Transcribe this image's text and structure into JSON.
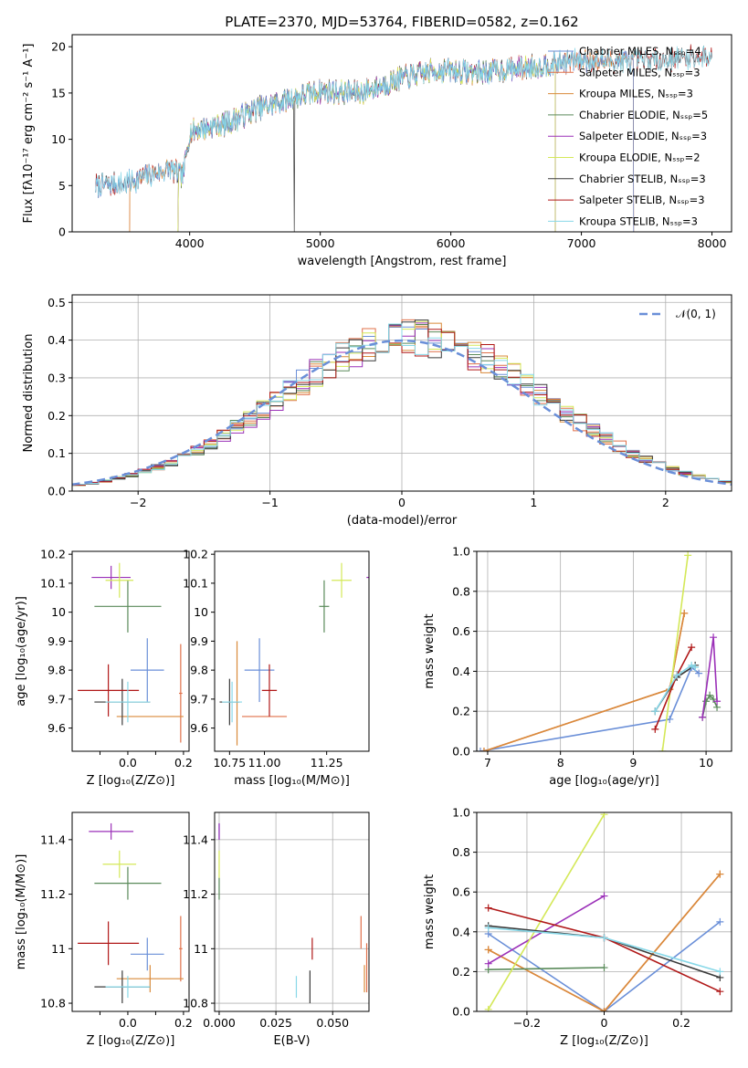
{
  "title": "PLATE=2370, MJD=53764, FIBERID=0582, z=0.162",
  "colors": {
    "Chabrier MILES": "#6a8fd8",
    "Salpeter MILES": "#e0704a",
    "Kroupa MILES": "#d98a3a",
    "Chabrier ELODIE": "#5a8a5a",
    "Salpeter ELODIE": "#9b30b8",
    "Kroupa ELODIE": "#d4e858",
    "Chabrier STELIB": "#3a3a3a",
    "Salpeter STELIB": "#b01818",
    "Kroupa STELIB": "#88d8e8",
    "gaussian": "#6a8fd8"
  },
  "chart_data": [
    {
      "id": "spectrum",
      "type": "line",
      "xlabel": "wavelength [Angstrom, rest frame]",
      "ylabel": "Flux [fλ10⁻¹⁷ erg cm⁻² s⁻¹ A⁻¹]",
      "xlim": [
        3100,
        8150
      ],
      "ylim": [
        0,
        21.3
      ],
      "xticks": [
        4000,
        5000,
        6000,
        7000,
        8000
      ],
      "yticks": [
        0,
        5,
        10,
        15,
        20
      ],
      "grid": false,
      "legend_position": "top-right",
      "continuum": [
        [
          3280,
          5.0
        ],
        [
          3500,
          5.2
        ],
        [
          3700,
          6.2
        ],
        [
          3850,
          6.8
        ],
        [
          3950,
          6.0
        ],
        [
          4000,
          10.8
        ],
        [
          4300,
          11.8
        ],
        [
          4500,
          13.2
        ],
        [
          4800,
          14.5
        ],
        [
          5000,
          15.2
        ],
        [
          5300,
          15.0
        ],
        [
          5600,
          16.5
        ],
        [
          5900,
          17.5
        ],
        [
          6200,
          17.2
        ],
        [
          6600,
          17.8
        ],
        [
          7000,
          18.6
        ],
        [
          7400,
          18.4
        ],
        [
          7800,
          18.8
        ],
        [
          8000,
          19.0
        ]
      ],
      "series": [
        {
          "label": "Chabrier MILES, Nₛₛₚ=4",
          "color_key": "Chabrier MILES",
          "x_range": [
            3280,
            7400
          ]
        },
        {
          "label": "Salpeter MILES, Nₛₛₚ=3",
          "color_key": "Salpeter MILES",
          "x_range": [
            3540,
            7400
          ]
        },
        {
          "label": "Kroupa MILES, Nₛₛₚ=3",
          "color_key": "Kroupa MILES",
          "x_range": [
            3540,
            7400
          ]
        },
        {
          "label": "Chabrier ELODIE, Nₛₛₚ=5",
          "color_key": "Chabrier ELODIE",
          "x_range": [
            3910,
            6800
          ]
        },
        {
          "label": "Salpeter ELODIE, Nₛₛₚ=3",
          "color_key": "Salpeter ELODIE",
          "x_range": [
            3910,
            6800
          ]
        },
        {
          "label": "Kroupa ELODIE, Nₛₛₚ=2",
          "color_key": "Kroupa ELODIE",
          "x_range": [
            3910,
            6800
          ]
        },
        {
          "label": "Chabrier STELIB, Nₛₛₚ=3",
          "color_key": "Chabrier STELIB",
          "x_range": [
            3280,
            8000
          ]
        },
        {
          "label": "Salpeter STELIB, Nₛₛₚ=3",
          "color_key": "Salpeter STELIB",
          "x_range": [
            3280,
            8000
          ]
        },
        {
          "label": "Kroupa STELIB, Nₛₛₚ=3",
          "color_key": "Kroupa STELIB",
          "x_range": [
            3280,
            8000
          ]
        }
      ]
    },
    {
      "id": "residuals",
      "type": "line",
      "xlabel": "(data-model)/error",
      "ylabel": "Normed distribution",
      "xlim": [
        -2.5,
        2.5
      ],
      "ylim": [
        0,
        0.52
      ],
      "xticks": [
        -2,
        -1,
        0,
        1,
        2
      ],
      "yticks": [
        0.0,
        0.1,
        0.2,
        0.3,
        0.4,
        0.5
      ],
      "grid": true,
      "legend_position": "top-right",
      "legend": [
        "𝒩(0, 1)"
      ],
      "bin_width": 0.1,
      "curve": {
        "name": "𝒩(0, 1)",
        "mean": 0,
        "sigma": 1
      }
    },
    {
      "id": "z-age",
      "type": "scatter",
      "xlabel": "Z [log₁₀(Z/Z⊙)]",
      "ylabel": "age  [log₁₀(age/yr)]",
      "xlim": [
        -0.2,
        0.22
      ],
      "ylim": [
        9.52,
        10.21
      ],
      "xticks": [
        -0.1,
        0.0,
        0.1,
        0.2
      ],
      "xticklabels": [
        "",
        "0.0",
        "",
        "0.2"
      ],
      "yticks": [
        9.6,
        9.7,
        9.8,
        9.9,
        10.0,
        10.1,
        10.2
      ],
      "grid": false,
      "points": [
        {
          "k": "Chabrier MILES",
          "x": 0.07,
          "y": 9.8,
          "ex": 0.06,
          "ey": 0.11
        },
        {
          "k": "Salpeter MILES",
          "x": 0.19,
          "y": 9.72,
          "ex": 0.006,
          "ey": 0.17
        },
        {
          "k": "Kroupa MILES",
          "x": 0.08,
          "y": 9.64,
          "ex": 0.12,
          "ey": 0.0
        },
        {
          "k": "Chabrier ELODIE",
          "x": 0.0,
          "y": 10.02,
          "ex": 0.12,
          "ey": 0.09
        },
        {
          "k": "Salpeter ELODIE",
          "x": -0.06,
          "y": 10.12,
          "ex": 0.07,
          "ey": 0.04
        },
        {
          "k": "Kroupa ELODIE",
          "x": -0.03,
          "y": 10.11,
          "ex": 0.05,
          "ey": 0.06
        },
        {
          "k": "Chabrier STELIB",
          "x": -0.02,
          "y": 9.69,
          "ex": 0.1,
          "ey": 0.08
        },
        {
          "k": "Salpeter STELIB",
          "x": -0.07,
          "y": 9.73,
          "ex": 0.11,
          "ey": 0.09
        },
        {
          "k": "Kroupa STELIB",
          "x": 0.0,
          "y": 9.69,
          "ex": 0.08,
          "ey": 0.07
        }
      ]
    },
    {
      "id": "mass-age",
      "type": "scatter",
      "xlabel": "mass [log₁₀(M/M⊙)]",
      "ylabel": "",
      "xlim": [
        10.8,
        11.42
      ],
      "ylim": [
        9.52,
        10.21
      ],
      "xticks": [
        10.75,
        11.0,
        11.25
      ],
      "xticklabels": [
        "10.75",
        "11.00",
        "11.25"
      ],
      "xticklabel_positions": [
        10.86,
        11.0,
        11.25
      ],
      "yticks": [
        9.6,
        9.7,
        9.8,
        9.9,
        10.0,
        10.1,
        10.2
      ],
      "grid": false,
      "points": [
        {
          "k": "Chabrier MILES",
          "x": 10.98,
          "y": 9.8,
          "ex": 0.06,
          "ey": 0.11
        },
        {
          "k": "Salpeter MILES",
          "x": 11.0,
          "y": 9.64,
          "ex": 0.09,
          "ey": 0.0
        },
        {
          "k": "Kroupa MILES",
          "x": 10.89,
          "y": 9.72,
          "ex": 0.0,
          "ey": 0.18
        },
        {
          "k": "Chabrier ELODIE",
          "x": 11.24,
          "y": 10.02,
          "ex": 0.02,
          "ey": 0.09
        },
        {
          "k": "Salpeter ELODIE",
          "x": 11.43,
          "y": 10.12,
          "ex": 0.02,
          "ey": 0.04
        },
        {
          "k": "Kroupa ELODIE",
          "x": 11.31,
          "y": 10.11,
          "ex": 0.04,
          "ey": 0.06
        },
        {
          "k": "Chabrier STELIB",
          "x": 10.86,
          "y": 9.69,
          "ex": 0.04,
          "ey": 0.08
        },
        {
          "k": "Salpeter STELIB",
          "x": 11.02,
          "y": 9.73,
          "ex": 0.03,
          "ey": 0.09
        },
        {
          "k": "Kroupa STELIB",
          "x": 10.87,
          "y": 9.69,
          "ex": 0.04,
          "ey": 0.07
        }
      ]
    },
    {
      "id": "age-weights",
      "type": "line",
      "xlabel": "age  [log₁₀(age/yr)]",
      "ylabel": "mass weight",
      "xlim": [
        6.85,
        10.35
      ],
      "ylim": [
        0,
        1.0
      ],
      "xticks": [
        7,
        8,
        9,
        10
      ],
      "yticks": [
        0.0,
        0.2,
        0.4,
        0.6,
        0.8,
        1.0
      ],
      "grid": true,
      "series": [
        {
          "k": "Chabrier MILES",
          "x": [
            6.9,
            9.5,
            9.8,
            9.9
          ],
          "y": [
            0.0,
            0.16,
            0.42,
            0.39
          ]
        },
        {
          "k": "Salpeter MILES",
          "x": [
            6.95,
            9.5,
            9.7
          ],
          "y": [
            0.0,
            0.31,
            0.69
          ]
        },
        {
          "k": "Kroupa MILES",
          "x": [
            6.95,
            9.5,
            9.7
          ],
          "y": [
            0.0,
            0.31,
            0.69
          ]
        },
        {
          "k": "Chabrier ELODIE",
          "x": [
            9.95,
            10.0,
            10.05,
            10.1,
            10.15
          ],
          "y": [
            0.17,
            0.25,
            0.28,
            0.26,
            0.22
          ]
        },
        {
          "k": "Salpeter ELODIE",
          "x": [
            9.95,
            10.1,
            10.15
          ],
          "y": [
            0.17,
            0.57,
            0.25
          ]
        },
        {
          "k": "Kroupa ELODIE",
          "x": [
            9.4,
            9.75
          ],
          "y": [
            0.0,
            0.98
          ]
        },
        {
          "k": "Chabrier STELIB",
          "x": [
            9.3,
            9.6,
            9.85
          ],
          "y": [
            0.2,
            0.37,
            0.43
          ]
        },
        {
          "k": "Salpeter STELIB",
          "x": [
            9.3,
            9.6,
            9.8
          ],
          "y": [
            0.11,
            0.38,
            0.52
          ]
        },
        {
          "k": "Kroupa STELIB",
          "x": [
            9.3,
            9.6,
            9.8,
            9.85
          ],
          "y": [
            0.2,
            0.38,
            0.43,
            0.42
          ]
        }
      ]
    },
    {
      "id": "z-mass",
      "type": "scatter",
      "xlabel": "Z [log₁₀(Z/Z⊙)]",
      "ylabel": "mass [log₁₀(M/M⊙)]",
      "xlim": [
        -0.2,
        0.22
      ],
      "ylim": [
        10.77,
        11.5
      ],
      "xticks": [
        -0.1,
        0.0,
        0.1,
        0.2
      ],
      "xticklabels": [
        "",
        "0.0",
        "",
        "0.2"
      ],
      "yticks": [
        10.8,
        11.0,
        11.2,
        11.4
      ],
      "grid": false,
      "points": [
        {
          "k": "Chabrier MILES",
          "x": 0.07,
          "y": 10.98,
          "ex": 0.06,
          "ey": 0.06
        },
        {
          "k": "Salpeter MILES",
          "x": 0.19,
          "y": 11.0,
          "ex": 0.006,
          "ey": 0.12
        },
        {
          "k": "Kroupa MILES",
          "x": 0.08,
          "y": 10.89,
          "ex": 0.12,
          "ey": 0.05
        },
        {
          "k": "Chabrier ELODIE",
          "x": 0.0,
          "y": 11.24,
          "ex": 0.12,
          "ey": 0.06
        },
        {
          "k": "Salpeter ELODIE",
          "x": -0.06,
          "y": 11.43,
          "ex": 0.08,
          "ey": 0.03
        },
        {
          "k": "Kroupa ELODIE",
          "x": -0.03,
          "y": 11.31,
          "ex": 0.06,
          "ey": 0.05
        },
        {
          "k": "Chabrier STELIB",
          "x": -0.02,
          "y": 10.86,
          "ex": 0.1,
          "ey": 0.06
        },
        {
          "k": "Salpeter STELIB",
          "x": -0.07,
          "y": 11.02,
          "ex": 0.11,
          "ey": 0.08
        },
        {
          "k": "Kroupa STELIB",
          "x": 0.0,
          "y": 10.86,
          "ex": 0.08,
          "ey": 0.04
        }
      ]
    },
    {
      "id": "ebv-mass",
      "type": "scatter",
      "xlabel": "E(B-V)",
      "ylabel": "",
      "xlim": [
        -0.002,
        0.066
      ],
      "ylim": [
        10.77,
        11.5
      ],
      "xticks": [
        0.0,
        0.025,
        0.05
      ],
      "xticklabels": [
        "0.000",
        "0.025",
        "0.050"
      ],
      "yticks": [
        10.8,
        11.0,
        11.2,
        11.4
      ],
      "grid": true,
      "points": [
        {
          "k": "Chabrier MILES",
          "x": 0.0,
          "y": 11.43,
          "ex": 0,
          "ey": 0.03
        },
        {
          "k": "Salpeter MILES",
          "x": 0.065,
          "y": 10.93,
          "ex": 0,
          "ey": 0.09
        },
        {
          "k": "Kroupa MILES",
          "x": 0.064,
          "y": 10.89,
          "ex": 0,
          "ey": 0.05
        },
        {
          "k": "Chabrier ELODIE",
          "x": 0.0,
          "y": 11.22,
          "ex": 0,
          "ey": 0.04
        },
        {
          "k": "Salpeter ELODIE",
          "x": 0.0,
          "y": 11.43,
          "ex": 0,
          "ey": 0.03
        },
        {
          "k": "Kroupa ELODIE",
          "x": 0.0,
          "y": 11.31,
          "ex": 0,
          "ey": 0.05
        },
        {
          "k": "Chabrier STELIB",
          "x": 0.04,
          "y": 10.86,
          "ex": 0,
          "ey": 0.06
        },
        {
          "k": "Salpeter STELIB",
          "x": 0.041,
          "y": 11.0,
          "ex": 0,
          "ey": 0.04
        },
        {
          "k": "Kroupa STELIB",
          "x": 0.034,
          "y": 10.86,
          "ex": 0,
          "ey": 0.04
        },
        {
          "k": "Salpeter MILES",
          "x": 0.0625,
          "y": 11.06,
          "ex": 0,
          "ey": 0.06
        }
      ]
    },
    {
      "id": "z-weights",
      "type": "line",
      "xlabel": "Z [log₁₀(Z/Z⊙)]",
      "ylabel": "mass weight",
      "xlim": [
        -0.33,
        0.33
      ],
      "ylim": [
        0,
        1.0
      ],
      "xticks": [
        -0.2,
        0.0,
        0.2
      ],
      "yticks": [
        0.0,
        0.2,
        0.4,
        0.6,
        0.8,
        1.0
      ],
      "grid": true,
      "series": [
        {
          "k": "Chabrier MILES",
          "x": [
            -0.3,
            0.0,
            0.3
          ],
          "y": [
            0.39,
            0.0,
            0.45
          ]
        },
        {
          "k": "Salpeter MILES",
          "x": [
            -0.3,
            0.0,
            0.3
          ],
          "y": [
            0.31,
            0.0,
            0.69
          ]
        },
        {
          "k": "Kroupa MILES",
          "x": [
            -0.3,
            0.0,
            0.3
          ],
          "y": [
            0.31,
            0.0,
            0.69
          ]
        },
        {
          "k": "Chabrier ELODIE",
          "x": [
            -0.3,
            0.0
          ],
          "y": [
            0.21,
            0.22
          ]
        },
        {
          "k": "Salpeter ELODIE",
          "x": [
            -0.3,
            0.0
          ],
          "y": [
            0.24,
            0.58
          ]
        },
        {
          "k": "Kroupa ELODIE",
          "x": [
            -0.3,
            0.0
          ],
          "y": [
            0.01,
            0.99
          ]
        },
        {
          "k": "Chabrier STELIB",
          "x": [
            -0.3,
            0.0,
            0.3
          ],
          "y": [
            0.43,
            0.37,
            0.17
          ]
        },
        {
          "k": "Salpeter STELIB",
          "x": [
            -0.3,
            0.0,
            0.3
          ],
          "y": [
            0.52,
            0.37,
            0.1
          ]
        },
        {
          "k": "Kroupa STELIB",
          "x": [
            -0.3,
            0.0,
            0.3
          ],
          "y": [
            0.42,
            0.37,
            0.2
          ]
        }
      ]
    }
  ]
}
